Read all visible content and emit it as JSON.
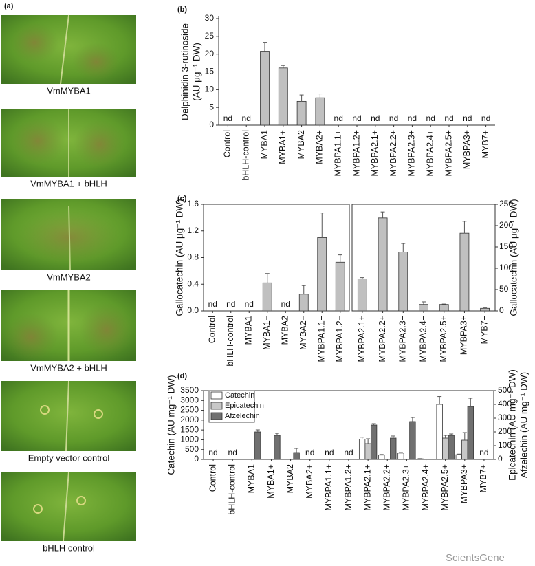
{
  "figure": {
    "panel_a": {
      "label": "(a)",
      "captions": [
        "VmMYBA1",
        "VmMYBA1 + bHLH",
        "VmMYBA2",
        "VmMYBA2 + bHLH",
        "Empty vector control",
        "bHLH control"
      ]
    },
    "watermark": "ScientsGene"
  },
  "chart_data": [
    {
      "type": "bar",
      "label": "(b)",
      "ylabel": [
        "Delphinidin 3-rutinoside",
        "(AU μg⁻¹ DW)"
      ],
      "categories": [
        "Control",
        "bHLH-control",
        "MYBA1",
        "MYBA1+",
        "MYBA2",
        "MYBA2+",
        "MYBPA1.1+",
        "MYBPA1.2+",
        "MYBPA2.1+",
        "MYBPA2.2+",
        "MYBPA2.3+",
        "MYBPA2.4+",
        "MYBPA2.5+",
        "MYBPA3+",
        "MYB7+"
      ],
      "values": [
        null,
        null,
        20.8,
        16.1,
        6.7,
        7.7,
        null,
        null,
        null,
        null,
        null,
        null,
        null,
        null,
        null
      ],
      "errors": [
        null,
        null,
        2.5,
        0.7,
        1.8,
        1.1,
        null,
        null,
        null,
        null,
        null,
        null,
        null,
        null,
        null
      ],
      "value_labels": [
        "nd",
        "nd",
        null,
        null,
        null,
        null,
        "nd",
        "nd",
        "nd",
        "nd",
        "nd",
        "nd",
        "nd",
        "nd",
        "nd"
      ],
      "color": "#c0c0c0",
      "ylim": [
        0,
        30
      ],
      "yticks": [
        0,
        5,
        10,
        15,
        20,
        25,
        30
      ]
    },
    {
      "type": "bar",
      "label": "(c)",
      "ylabel": "Gallocatechin (AU μg⁻¹ DW)",
      "y2label": "Gallocatechin (AU μg⁻¹ DW)",
      "categories": [
        "Control",
        "bHLH-control",
        "MYBA1",
        "MYBA1+",
        "MYBA2",
        "MYBA2+",
        "MYBPA1.1+",
        "MYBPA1.2+",
        "MYBPA2.1+",
        "MYBPA2.2+",
        "MYBPA2.3+",
        "MYBPA2.4+",
        "MYBPA2.5+",
        "MYBPA3+",
        "MYB7+"
      ],
      "series": [
        {
          "color": "#c0c0c0",
          "values": [
            null,
            null,
            null,
            0.42,
            null,
            0.25,
            1.1,
            0.73,
            null,
            null,
            null,
            null,
            null,
            null,
            null
          ],
          "errors": [
            null,
            null,
            null,
            0.14,
            null,
            0.13,
            0.37,
            0.11,
            null,
            null,
            null,
            null,
            null,
            null,
            null
          ],
          "value_labels": [
            "nd",
            "nd",
            "nd",
            null,
            "nd",
            null,
            null,
            null,
            null,
            null,
            null,
            null,
            null,
            null,
            null
          ]
        },
        {
          "color": "#c0c0c0",
          "axis": "y2",
          "values": [
            null,
            null,
            null,
            null,
            null,
            null,
            null,
            null,
            75,
            218,
            138,
            15,
            15,
            182,
            6
          ],
          "errors": [
            null,
            null,
            null,
            null,
            null,
            null,
            null,
            null,
            3,
            14,
            20,
            6,
            1,
            28,
            1
          ]
        }
      ],
      "ylim": [
        0,
        1.6
      ],
      "yticks": [
        {
          "value": 0,
          "label": "0.0"
        },
        0.4,
        0.8,
        1.2,
        1.6
      ],
      "y2lim": [
        0,
        250
      ],
      "y2ticks": [
        0,
        50,
        100,
        150,
        200,
        250
      ]
    },
    {
      "type": "bar",
      "label": "(d)",
      "ylabel": "Catechin (AU mg⁻¹ DW)",
      "y2label": [
        "Epicatechin (AU mg⁻¹ DW)",
        "Afzelechin (AU mg⁻¹ DW)"
      ],
      "categories": [
        "Control",
        "bHLH-control",
        "MYBA1",
        "MYBA1+",
        "MYBA2",
        "MYBA2+",
        "MYBPA1.1+",
        "MYBPA1.2+",
        "MYBPA2.1+",
        "MYBPA2.2+",
        "MYBPA2.3+",
        "MYBPA2.4+",
        "MYBPA2.5+",
        "MYBPA3+",
        "MYB7+"
      ],
      "legend": "upper left",
      "series": [
        {
          "name": "Catechin",
          "color": "#ffffff",
          "values": [
            null,
            null,
            null,
            null,
            null,
            null,
            null,
            null,
            1030,
            220,
            320,
            30,
            2800,
            240,
            null
          ],
          "errors": [
            null,
            null,
            null,
            null,
            null,
            null,
            null,
            null,
            100,
            30,
            30,
            10,
            400,
            30,
            null
          ],
          "value_labels": [
            "nd",
            "nd",
            null,
            null,
            null,
            "nd",
            "nd",
            "nd",
            null,
            null,
            null,
            null,
            null,
            null,
            "nd"
          ]
        },
        {
          "name": "Epicatechin",
          "color": "#c8c8c8",
          "axis": "y2",
          "values": [
            null,
            null,
            null,
            null,
            null,
            null,
            null,
            null,
            115,
            null,
            null,
            null,
            155,
            140,
            null
          ],
          "errors": [
            null,
            null,
            null,
            null,
            null,
            null,
            null,
            null,
            35,
            null,
            null,
            null,
            20,
            55,
            null
          ]
        },
        {
          "name": "Afzelechin",
          "color": "#707070",
          "axis": "y2",
          "values": [
            null,
            null,
            200,
            175,
            50,
            null,
            null,
            null,
            250,
            155,
            275,
            3,
            175,
            385,
            null
          ],
          "errors": [
            null,
            null,
            15,
            15,
            30,
            null,
            null,
            null,
            10,
            15,
            30,
            null,
            10,
            60,
            null
          ]
        }
      ],
      "ylim": [
        0,
        3500
      ],
      "yticks": [
        0,
        500,
        1000,
        1500,
        2000,
        2500,
        3000,
        3500
      ],
      "y2lim": [
        0,
        500
      ],
      "y2ticks": [
        0,
        100,
        200,
        300,
        400,
        500
      ]
    }
  ]
}
